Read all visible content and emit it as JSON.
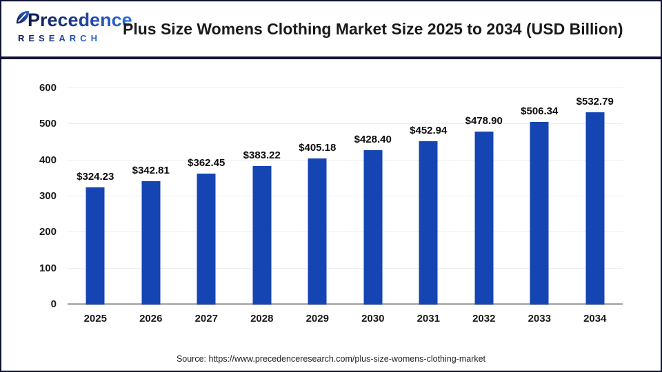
{
  "brand": {
    "name": "Precedence",
    "tagline": "RESEARCH"
  },
  "header": {
    "title": "Plus Size Womens Clothing Market Size 2025 to 2034 (USD Billion)"
  },
  "chart_data": {
    "type": "bar",
    "title": "Plus Size Womens Clothing Market Size 2025 to 2034 (USD Billion)",
    "categories": [
      "2025",
      "2026",
      "2027",
      "2028",
      "2029",
      "2030",
      "2031",
      "2032",
      "2033",
      "2034"
    ],
    "values": [
      324.23,
      342.81,
      362.45,
      383.22,
      405.18,
      428.4,
      452.94,
      478.9,
      506.34,
      532.79
    ],
    "value_labels": [
      "$324.23",
      "$342.81",
      "$362.45",
      "$383.22",
      "$405.18",
      "$428.40",
      "$452.94",
      "$478.90",
      "$506.34",
      "$532.79"
    ],
    "value_prefix": "$",
    "unit": "USD Billion",
    "xlabel": "",
    "ylabel": "",
    "ylim": [
      0,
      600
    ],
    "yticks": [
      0,
      100,
      200,
      300,
      400,
      500,
      600
    ],
    "grid": "horizontal",
    "legend": "none",
    "bar_color": "#1545B2"
  },
  "footer": {
    "source": "Source: https://www.precedenceresearch.com/plus-size-womens-clothing-market"
  },
  "colors": {
    "bar": "#1545B2",
    "frame_border": "#0e1233",
    "gridline": "#ededed",
    "baseline": "#b3b3b3",
    "title_text": "#1a1a1a",
    "logo_dark": "#10194a",
    "logo_blue": "#2e6cdf"
  }
}
